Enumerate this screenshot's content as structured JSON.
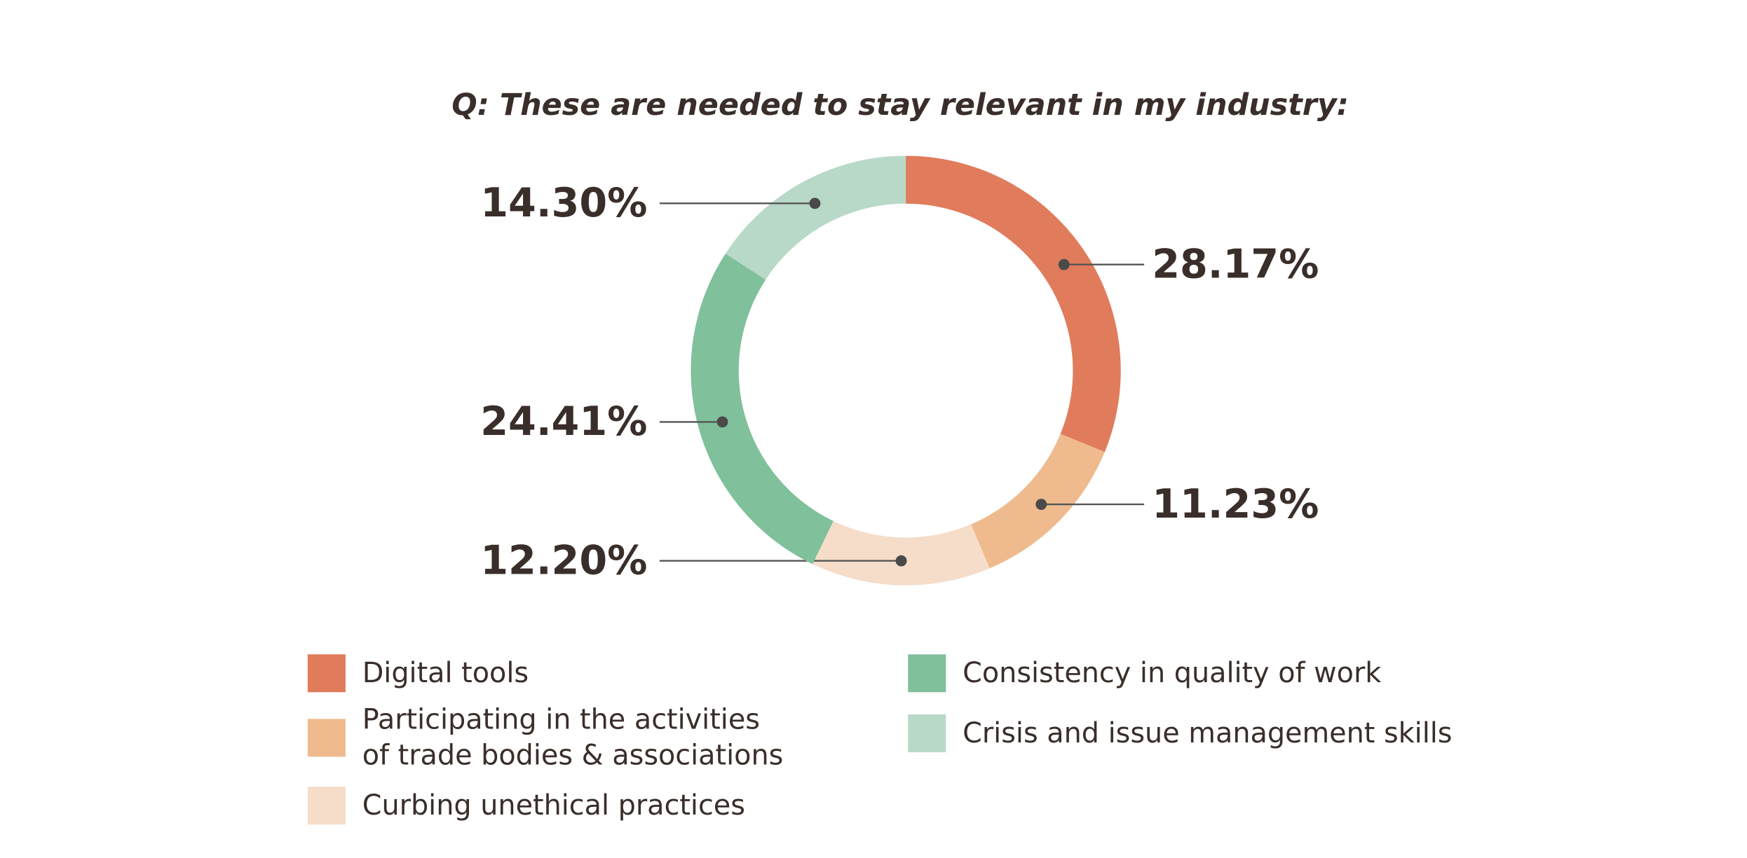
{
  "chart_data": {
    "type": "donut",
    "title": "Q: These are needed to stay relevant in my industry:",
    "categories": [
      "Digital tools",
      "Participating in the activities\nof trade bodies & associations",
      "Curbing unethical practices",
      "Consistency in quality of work",
      "Crisis and issue management skills"
    ],
    "values": [
      28.17,
      11.23,
      12.2,
      24.41,
      14.3
    ],
    "value_labels": [
      "28.17%",
      "11.23%",
      "12.20%",
      "24.41%",
      "14.30%"
    ],
    "colors": [
      "#e07c5c",
      "#efbb8e",
      "#f5ddc9",
      "#80c09b",
      "#b9d9c8"
    ]
  }
}
